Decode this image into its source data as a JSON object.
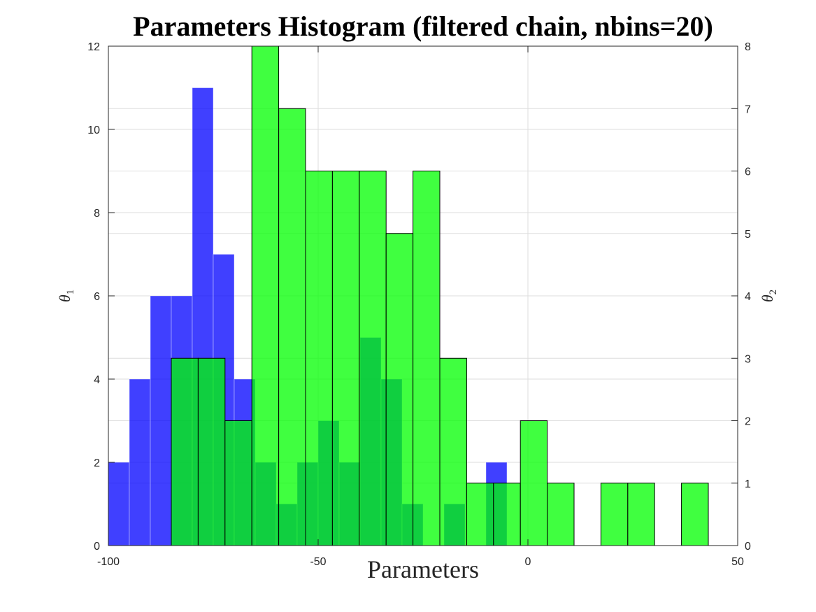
{
  "chart_data": {
    "type": "bar",
    "title": "Parameters Histogram (filtered chain, nbins=20)",
    "xlabel": "Parameters",
    "ylabel_left": "θ",
    "ylabel_left_sub": "1",
    "ylabel_right": "θ",
    "ylabel_right_sub": "2",
    "xlim": [
      -100,
      50
    ],
    "ylim_left": [
      0,
      12
    ],
    "ylim_right": [
      0,
      8
    ],
    "grid": true,
    "x_ticks": [
      "-100",
      "-50",
      "0",
      "50"
    ],
    "y_ticks_left": [
      "0",
      "2",
      "4",
      "6",
      "8",
      "10",
      "12"
    ],
    "y_ticks_right": [
      "0",
      "1",
      "2",
      "3",
      "4",
      "5",
      "6",
      "7",
      "8"
    ],
    "series": [
      {
        "axis": "left",
        "color": "#0000ff",
        "opacity": 0.75,
        "bin_edges": [
          -100,
          -95,
          -90,
          -85,
          -80,
          -75,
          -70,
          -65,
          -60,
          -55,
          -50,
          -45,
          -40,
          -35,
          -30,
          -25,
          -20,
          -15,
          -10,
          -5,
          0
        ],
        "values": [
          2,
          4,
          6,
          6,
          11,
          7,
          4,
          2,
          1,
          2,
          3,
          2,
          5,
          4,
          1,
          0,
          1,
          0,
          2,
          0
        ]
      },
      {
        "axis": "right",
        "color": "#00ff00",
        "opacity": 0.75,
        "bin_edges": [
          -85,
          -78.6,
          -72.2,
          -65.8,
          -59.4,
          -53,
          -46.6,
          -40.2,
          -33.8,
          -27.4,
          -21,
          -14.6,
          -8.2,
          -1.8,
          4.6,
          11,
          17.4,
          23.8,
          30.2,
          36.6,
          43
        ],
        "values": [
          3,
          3,
          2,
          8,
          7,
          6,
          6,
          6,
          5,
          6,
          3,
          1,
          1,
          2,
          1,
          0,
          1,
          1,
          0,
          1
        ]
      }
    ]
  }
}
